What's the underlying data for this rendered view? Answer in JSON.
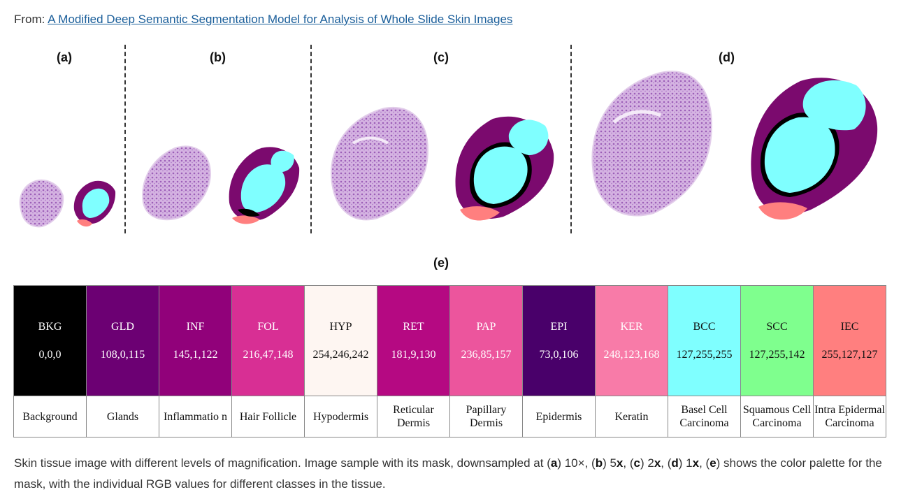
{
  "header": {
    "from_label": "From:",
    "title": "A Modified Deep Semantic Segmentation Model for Analysis of Whole Slide Skin Images"
  },
  "panels": [
    "(a)",
    "(b)",
    "(c)",
    "(d)",
    "(e)"
  ],
  "palette": [
    {
      "code": "BKG",
      "rgb": "0,0,0",
      "name": "Background",
      "color": "#000000",
      "text_color": "#ffffff"
    },
    {
      "code": "GLD",
      "rgb": "108,0,115",
      "name": "Glands",
      "color": "#6c0073",
      "text_color": "#ffffff"
    },
    {
      "code": "INF",
      "rgb": "145,1,122",
      "name": "Inflammatio n",
      "color": "#91017a",
      "text_color": "#ffffff"
    },
    {
      "code": "FOL",
      "rgb": "216,47,148",
      "name": "Hair Follicle",
      "color": "#d82f94",
      "text_color": "#ffffff"
    },
    {
      "code": "HYP",
      "rgb": "254,246,242",
      "name": "Hypodermis",
      "color": "#fef6f2",
      "text_color": "#111111"
    },
    {
      "code": "RET",
      "rgb": "181,9,130",
      "name": "Reticular Dermis",
      "color": "#b50982",
      "text_color": "#ffffff"
    },
    {
      "code": "PAP",
      "rgb": "236,85,157",
      "name": "Papillary Dermis",
      "color": "#ec559d",
      "text_color": "#ffffff"
    },
    {
      "code": "EPI",
      "rgb": "73,0,106",
      "name": "Epidermis",
      "color": "#49006a",
      "text_color": "#ffffff"
    },
    {
      "code": "KER",
      "rgb": "248,123,168",
      "name": "Keratin",
      "color": "#f87ba8",
      "text_color": "#ffffff"
    },
    {
      "code": "BCC",
      "rgb": "127,255,255",
      "name": "Basel Cell Carcinoma",
      "color": "#7fffff",
      "text_color": "#111111"
    },
    {
      "code": "SCC",
      "rgb": "127,255,142",
      "name": "Squamous Cell Carcinoma",
      "color": "#7fff8e",
      "text_color": "#111111"
    },
    {
      "code": "IEC",
      "rgb": "255,127,127",
      "name": "Intra Epidermal Carcinoma",
      "color": "#ff7f7f",
      "text_color": "#111111"
    }
  ],
  "caption": {
    "p1": "Skin tissue image with different levels of magnification. Image sample with its mask, downsampled at (",
    "a": "a",
    "p2": ") 10×, (",
    "b": "b",
    "p3": ") 5",
    "bx": "x",
    "p4": ", (",
    "c": "c",
    "p5": ") 2",
    "cx": "x",
    "p6": ", (",
    "d": "d",
    "p7": ") 1",
    "dx": "x",
    "p8": ", (",
    "e": "e",
    "p9": ") shows the color palette for the mask, with the individual RGB values for different classes in the tissue."
  },
  "colors": {
    "tissue": "#c9a0d8",
    "tissue_dark": "#9c5fb8",
    "mask_bcc": "#7fffff",
    "mask_inf": "#7b0a6e",
    "mask_iec": "#ff7f7f",
    "mask_bkg": "#000000"
  }
}
